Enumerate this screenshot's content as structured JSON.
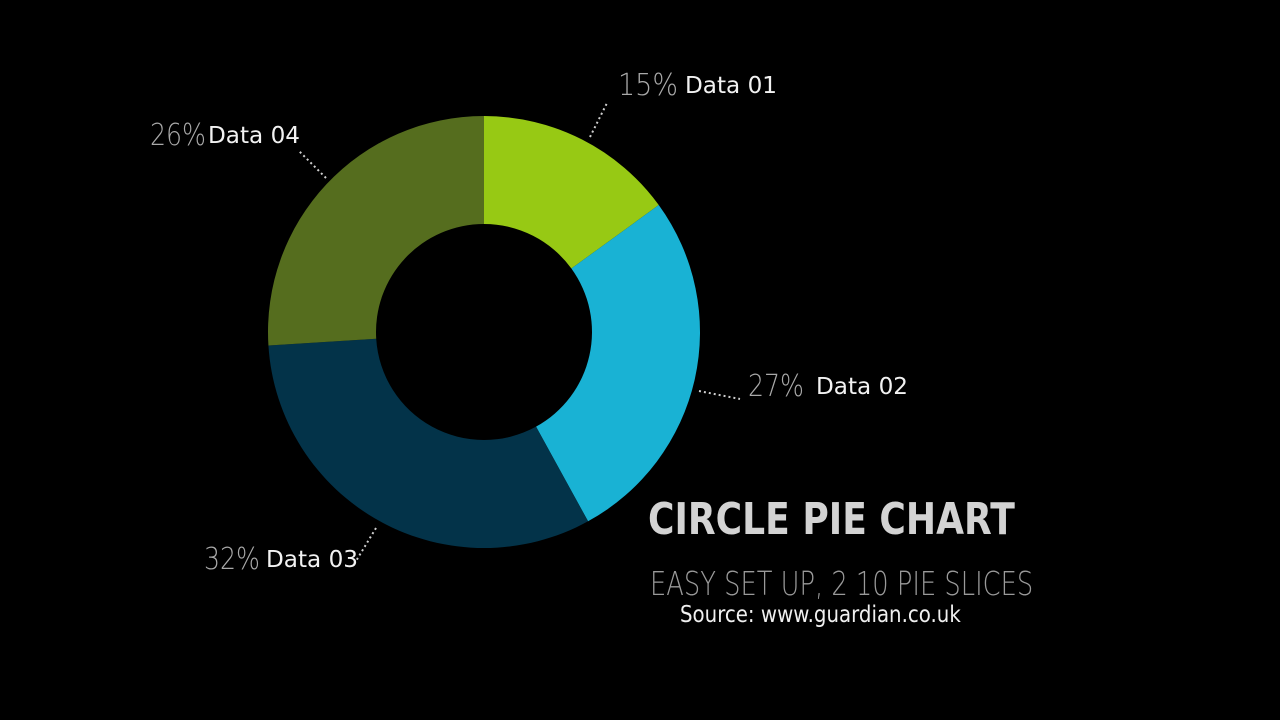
{
  "chart_data": {
    "type": "pie",
    "style": "donut",
    "title": "CIRCLE PIE CHART",
    "subtitle": "EASY SET UP,  2 10 PIE SLICES",
    "source": "Source: www.guardian.co.uk",
    "categories": [
      "Data 01",
      "Data 02",
      "Data 03",
      "Data 04"
    ],
    "values": [
      15,
      27,
      32,
      26
    ],
    "percent_labels": [
      "15%",
      "27%",
      "32%",
      "26%"
    ],
    "colors": [
      "#97c914",
      "#19b2d4",
      "#033349",
      "#556d1e"
    ],
    "legend": "none"
  }
}
